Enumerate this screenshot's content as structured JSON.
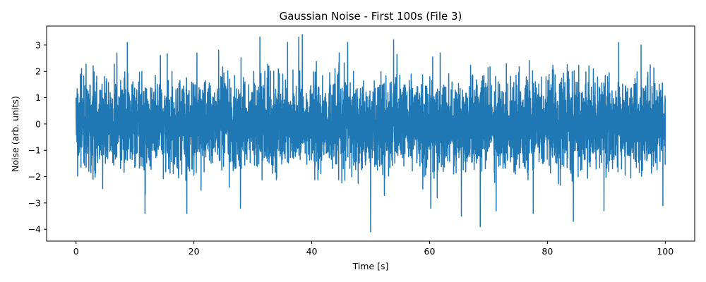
{
  "chart_data": {
    "type": "line",
    "title": "Gaussian Noise - First 100s (File 3)",
    "xlabel": "Time [s]",
    "ylabel": "Noise (arb. units)",
    "xlim": [
      -5,
      105
    ],
    "ylim": [
      -4.45,
      3.72
    ],
    "xticks": [
      0,
      20,
      40,
      60,
      80,
      100
    ],
    "yticks": [
      -4,
      -3,
      -2,
      -1,
      0,
      1,
      2,
      3
    ],
    "grid": false,
    "legend": "none",
    "series_color": "#1f77b4",
    "signal": {
      "distribution": "gaussian",
      "mean": 0,
      "std": 0.8,
      "t_start": 0,
      "t_end": 100
    },
    "series": [
      {
        "x": [
          0.0,
          8.7,
          11.7,
          18.8,
          24.2,
          27.9,
          31.2,
          35.9,
          37.8,
          38.4,
          46.1,
          50.0,
          53.9,
          60.2,
          61.3,
          65.4,
          68.6,
          71.3,
          77.6,
          84.4,
          89.6,
          92.1,
          95.9,
          99.6
        ],
        "y": [
          1.0,
          3.1,
          -3.4,
          -3.4,
          2.8,
          -3.2,
          3.3,
          3.1,
          3.3,
          3.4,
          3.1,
          -4.1,
          3.2,
          -3.2,
          -2.8,
          -3.5,
          -3.9,
          -3.3,
          -3.4,
          -3.7,
          -3.3,
          3.1,
          3.0,
          -3.1
        ]
      }
    ]
  }
}
